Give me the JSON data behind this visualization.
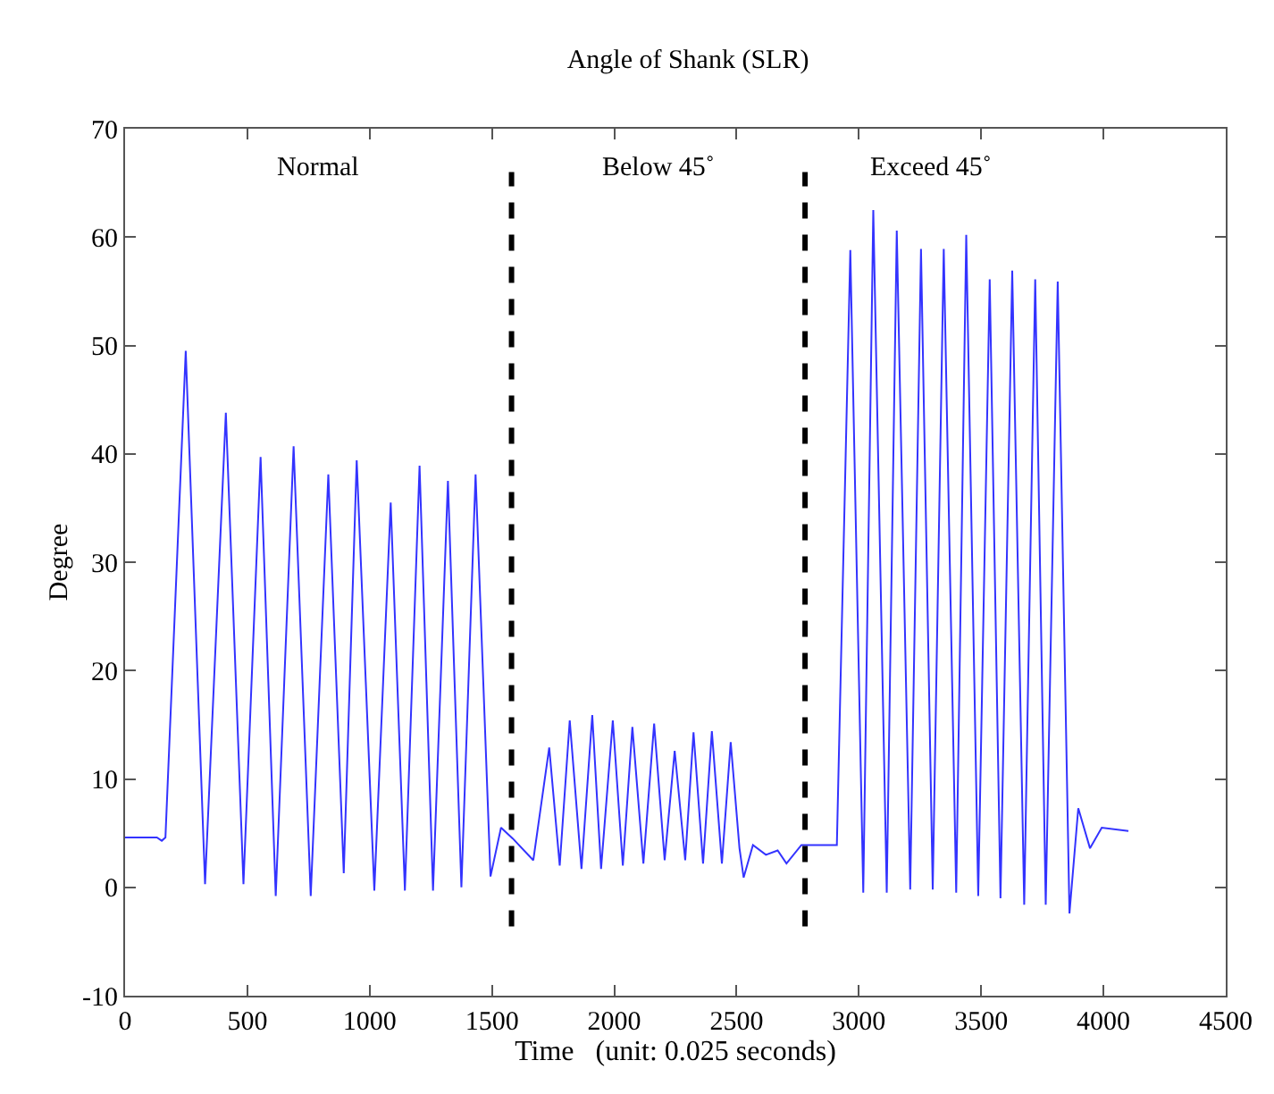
{
  "chart_data": {
    "type": "line",
    "title": "Angle of Shank (SLR)",
    "xlabel": "Time   (unit: 0.025 seconds)",
    "ylabel": "Degree",
    "xlim": [
      0,
      4500
    ],
    "xticks": [
      0,
      500,
      1000,
      1500,
      2000,
      2500,
      3000,
      3500,
      4000,
      4500
    ],
    "ylim": [
      -10,
      70
    ],
    "yticks": [
      -10,
      0,
      10,
      20,
      30,
      40,
      50,
      60,
      70
    ],
    "marker": "none",
    "line_style": "solid",
    "series": [
      {
        "color": "#3333ff",
        "x": [
          0,
          130,
          150,
          165,
          248,
          327,
          412,
          484,
          554,
          616,
          689,
          759,
          831,
          894,
          947,
          1019,
          1086,
          1144,
          1204,
          1259,
          1320,
          1375,
          1433,
          1494,
          1537,
          1585,
          1669,
          1734,
          1777,
          1818,
          1866,
          1910,
          1946,
          1994,
          2035,
          2074,
          2119,
          2163,
          2206,
          2247,
          2290,
          2324,
          2363,
          2399,
          2440,
          2476,
          2512,
          2529,
          2567,
          2620,
          2668,
          2704,
          2765,
          2910,
          2965,
          3018,
          3059,
          3114,
          3155,
          3210,
          3254,
          3302,
          3347,
          3398,
          3439,
          3488,
          3535,
          3579,
          3627,
          3676,
          3721,
          3764,
          3813,
          3861,
          3897,
          3945,
          3993,
          4102
        ],
        "values": [
          4.6,
          4.6,
          4.3,
          4.6,
          49.5,
          0.3,
          43.8,
          0.3,
          39.7,
          -0.8,
          40.7,
          -0.8,
          38.1,
          1.3,
          39.4,
          -0.3,
          35.5,
          -0.3,
          38.9,
          -0.3,
          37.5,
          0,
          38.1,
          1.0,
          5.5,
          4.5,
          2.5,
          12.9,
          2.0,
          15.4,
          1.7,
          15.9,
          1.7,
          15.4,
          2.0,
          14.8,
          2.2,
          15.1,
          2.5,
          12.6,
          2.5,
          14.3,
          2.2,
          14.4,
          2.2,
          13.4,
          3.6,
          0.9,
          3.9,
          3.0,
          3.4,
          2.2,
          3.9,
          3.9,
          58.8,
          -0.5,
          62.5,
          -0.5,
          60.6,
          -0.2,
          58.9,
          -0.2,
          58.9,
          -0.5,
          60.2,
          -0.8,
          56.1,
          -1.0,
          56.9,
          -1.6,
          56.1,
          -1.6,
          55.9,
          -2.4,
          7.3,
          3.6,
          5.5,
          5.2
        ]
      }
    ],
    "ref_lines": [
      {
        "axis": "x",
        "value": 1580,
        "color": "#000000",
        "line_style": "dashed"
      },
      {
        "axis": "x",
        "value": 2780,
        "color": "#000000",
        "line_style": "dashed"
      }
    ],
    "annotations": [
      "Normal",
      "Below 45˚",
      "Exceed 45˚"
    ]
  }
}
